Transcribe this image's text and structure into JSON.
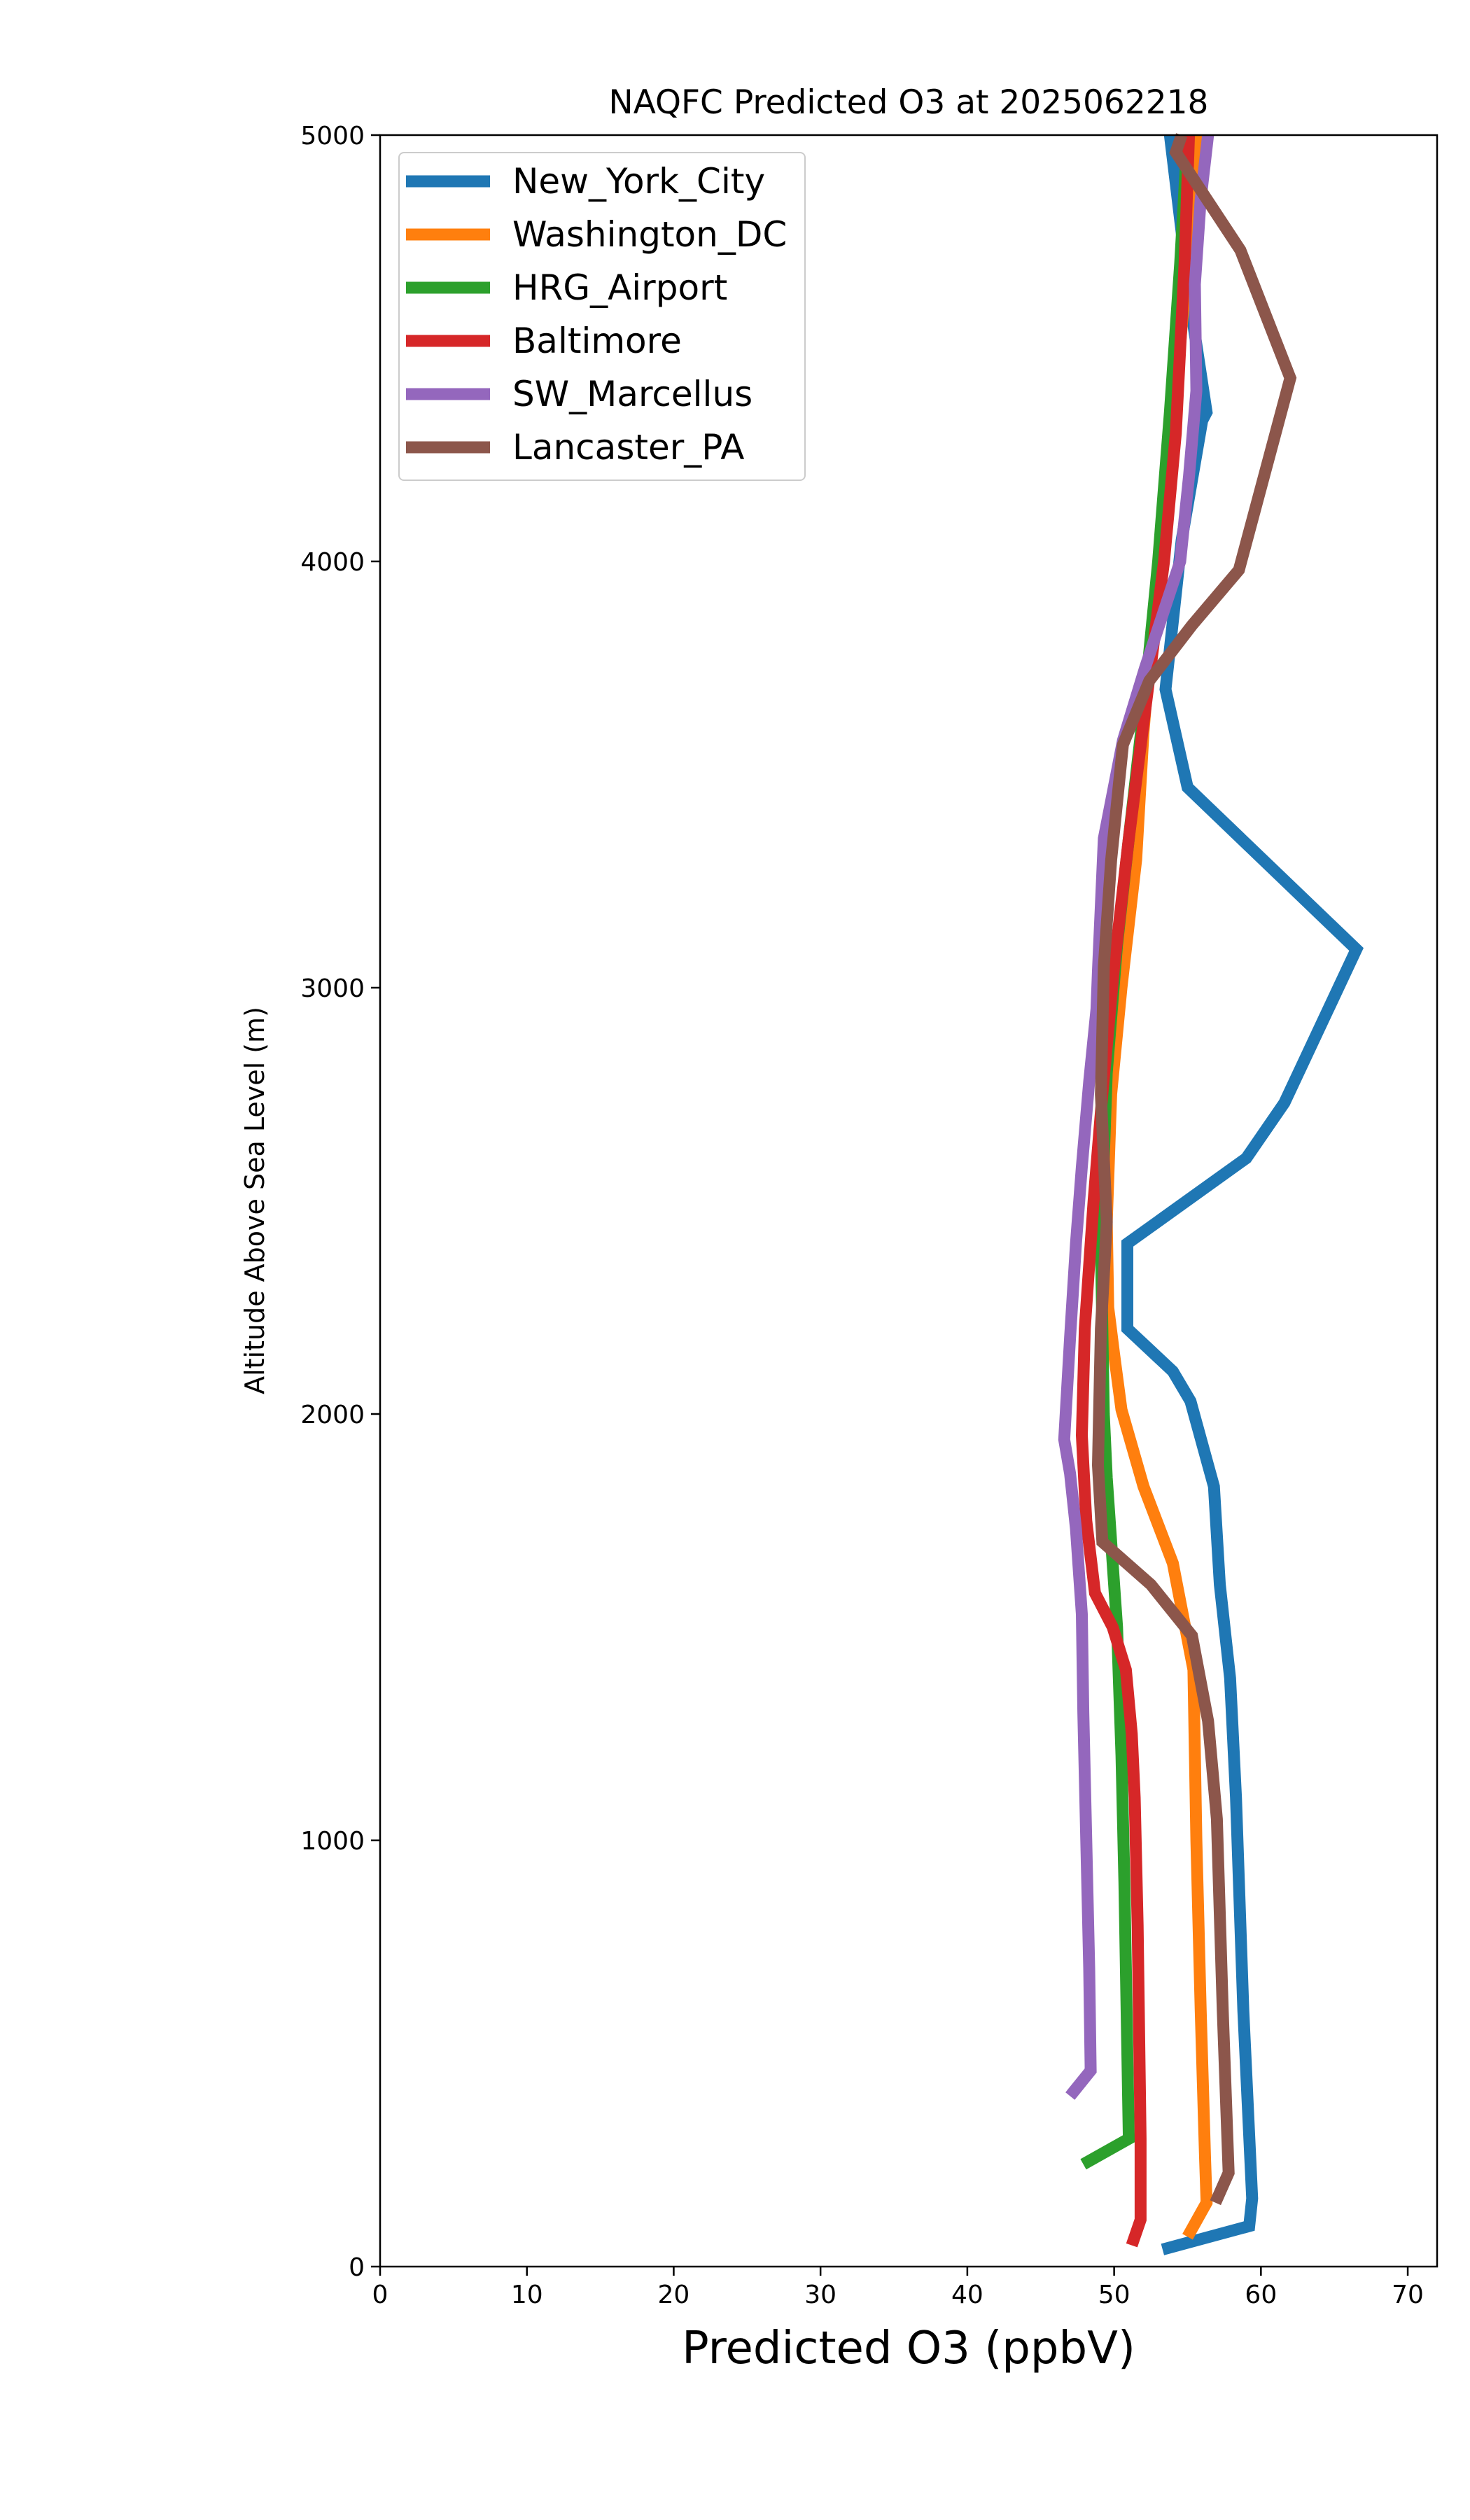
{
  "chart_data": {
    "type": "line",
    "title": "NAQFC Predicted O3 at 2025062218",
    "xlabel": "Predicted O3 (ppbV)",
    "ylabel": "Altitude Above Sea Level (m)",
    "xlim": [
      0,
      72
    ],
    "ylim": [
      0,
      5000
    ],
    "xticks": [
      "0",
      "10",
      "20",
      "30",
      "40",
      "50",
      "60",
      "70"
    ],
    "yticks": [
      "0",
      "1000",
      "2000",
      "3000",
      "4000",
      "5000"
    ],
    "grid": false,
    "legend_position": "top-left",
    "series": [
      {
        "name": "New_York_City",
        "color": "#1f77b4",
        "x": [
          53.3,
          59.2,
          59.4,
          58.8,
          58.3,
          57.9,
          57.2,
          56.8,
          55.2,
          54.0,
          50.9,
          50.9,
          59.0,
          61.6,
          66.5,
          55.0,
          53.5,
          54.6,
          56.0,
          56.3,
          55.2,
          54.5,
          53.8
        ],
        "y": [
          40,
          95,
          160,
          600,
          1100,
          1380,
          1600,
          1830,
          2030,
          2100,
          2200,
          2400,
          2600,
          2730,
          3090,
          3470,
          3700,
          4050,
          4330,
          4350,
          4600,
          4800,
          5000
        ]
      },
      {
        "name": "Washington_DC",
        "color": "#ff7f0e",
        "x": [
          55.0,
          56.3,
          56.2,
          55.9,
          55.6,
          55.4,
          54.0,
          52.0,
          50.5,
          50.0,
          49.6,
          49.5,
          49.8,
          50.5,
          51.5,
          52.0,
          52.6,
          53.4,
          54.2,
          55.0,
          55.6
        ],
        "y": [
          70,
          150,
          250,
          600,
          1000,
          1400,
          1650,
          1830,
          2010,
          2140,
          2250,
          2450,
          2750,
          3000,
          3300,
          3600,
          3850,
          4100,
          4400,
          4700,
          5000
        ]
      },
      {
        "name": "HRG_Airport",
        "color": "#2ca02c",
        "x": [
          47.9,
          51.0,
          50.9,
          50.7,
          50.5,
          50.2,
          49.8,
          49.5,
          49.3,
          49.2,
          49.1,
          49.5,
          50.2,
          51.0,
          52.0,
          53.0,
          53.8,
          54.5,
          55.0
        ],
        "y": [
          240,
          300,
          500,
          900,
          1200,
          1500,
          1700,
          1850,
          2000,
          2200,
          2400,
          2800,
          3100,
          3350,
          3650,
          4000,
          4350,
          4700,
          5000
        ]
      },
      {
        "name": "Baltimore",
        "color": "#d62728",
        "x": [
          51.2,
          51.8,
          51.8,
          51.6,
          51.4,
          51.2,
          50.8,
          49.9,
          48.7,
          48.1,
          47.8,
          48.0,
          48.6,
          49.2,
          50.0,
          51.0,
          52.3,
          53.4,
          54.2,
          54.8,
          55.1
        ],
        "y": [
          50,
          110,
          300,
          800,
          1100,
          1250,
          1400,
          1500,
          1580,
          1750,
          1950,
          2200,
          2500,
          2750,
          3050,
          3350,
          3700,
          4000,
          4300,
          4700,
          5000
        ]
      },
      {
        "name": "SW_Marcellus",
        "color": "#9467bd",
        "x": [
          47.0,
          48.4,
          48.3,
          48.1,
          47.9,
          47.8,
          47.4,
          47.0,
          46.6,
          47.0,
          47.4,
          47.8,
          48.3,
          48.8,
          48.9,
          49.3,
          50.6,
          52.1,
          54.5,
          55.1,
          55.6,
          55.5,
          55.9,
          56.4
        ],
        "y": [
          400,
          460,
          700,
          1000,
          1300,
          1530,
          1730,
          1860,
          1940,
          2180,
          2400,
          2580,
          2780,
          2950,
          3040,
          3350,
          3580,
          3750,
          4000,
          4200,
          4400,
          4650,
          4850,
          5000
        ]
      },
      {
        "name": "Lancaster_PA",
        "color": "#8c564b",
        "x": [
          56.9,
          57.8,
          57.4,
          57.0,
          56.4,
          55.3,
          52.5,
          49.2,
          48.9,
          49.1,
          49.5,
          49.1,
          49.3,
          49.8,
          50.6,
          52.4,
          55.3,
          58.5,
          62.0,
          58.6,
          54.2,
          54.6
        ],
        "y": [
          150,
          220,
          600,
          1050,
          1280,
          1480,
          1600,
          1700,
          1880,
          2200,
          2450,
          2750,
          3050,
          3300,
          3570,
          3720,
          3850,
          3980,
          4430,
          4730,
          4960,
          5000
        ]
      }
    ]
  }
}
